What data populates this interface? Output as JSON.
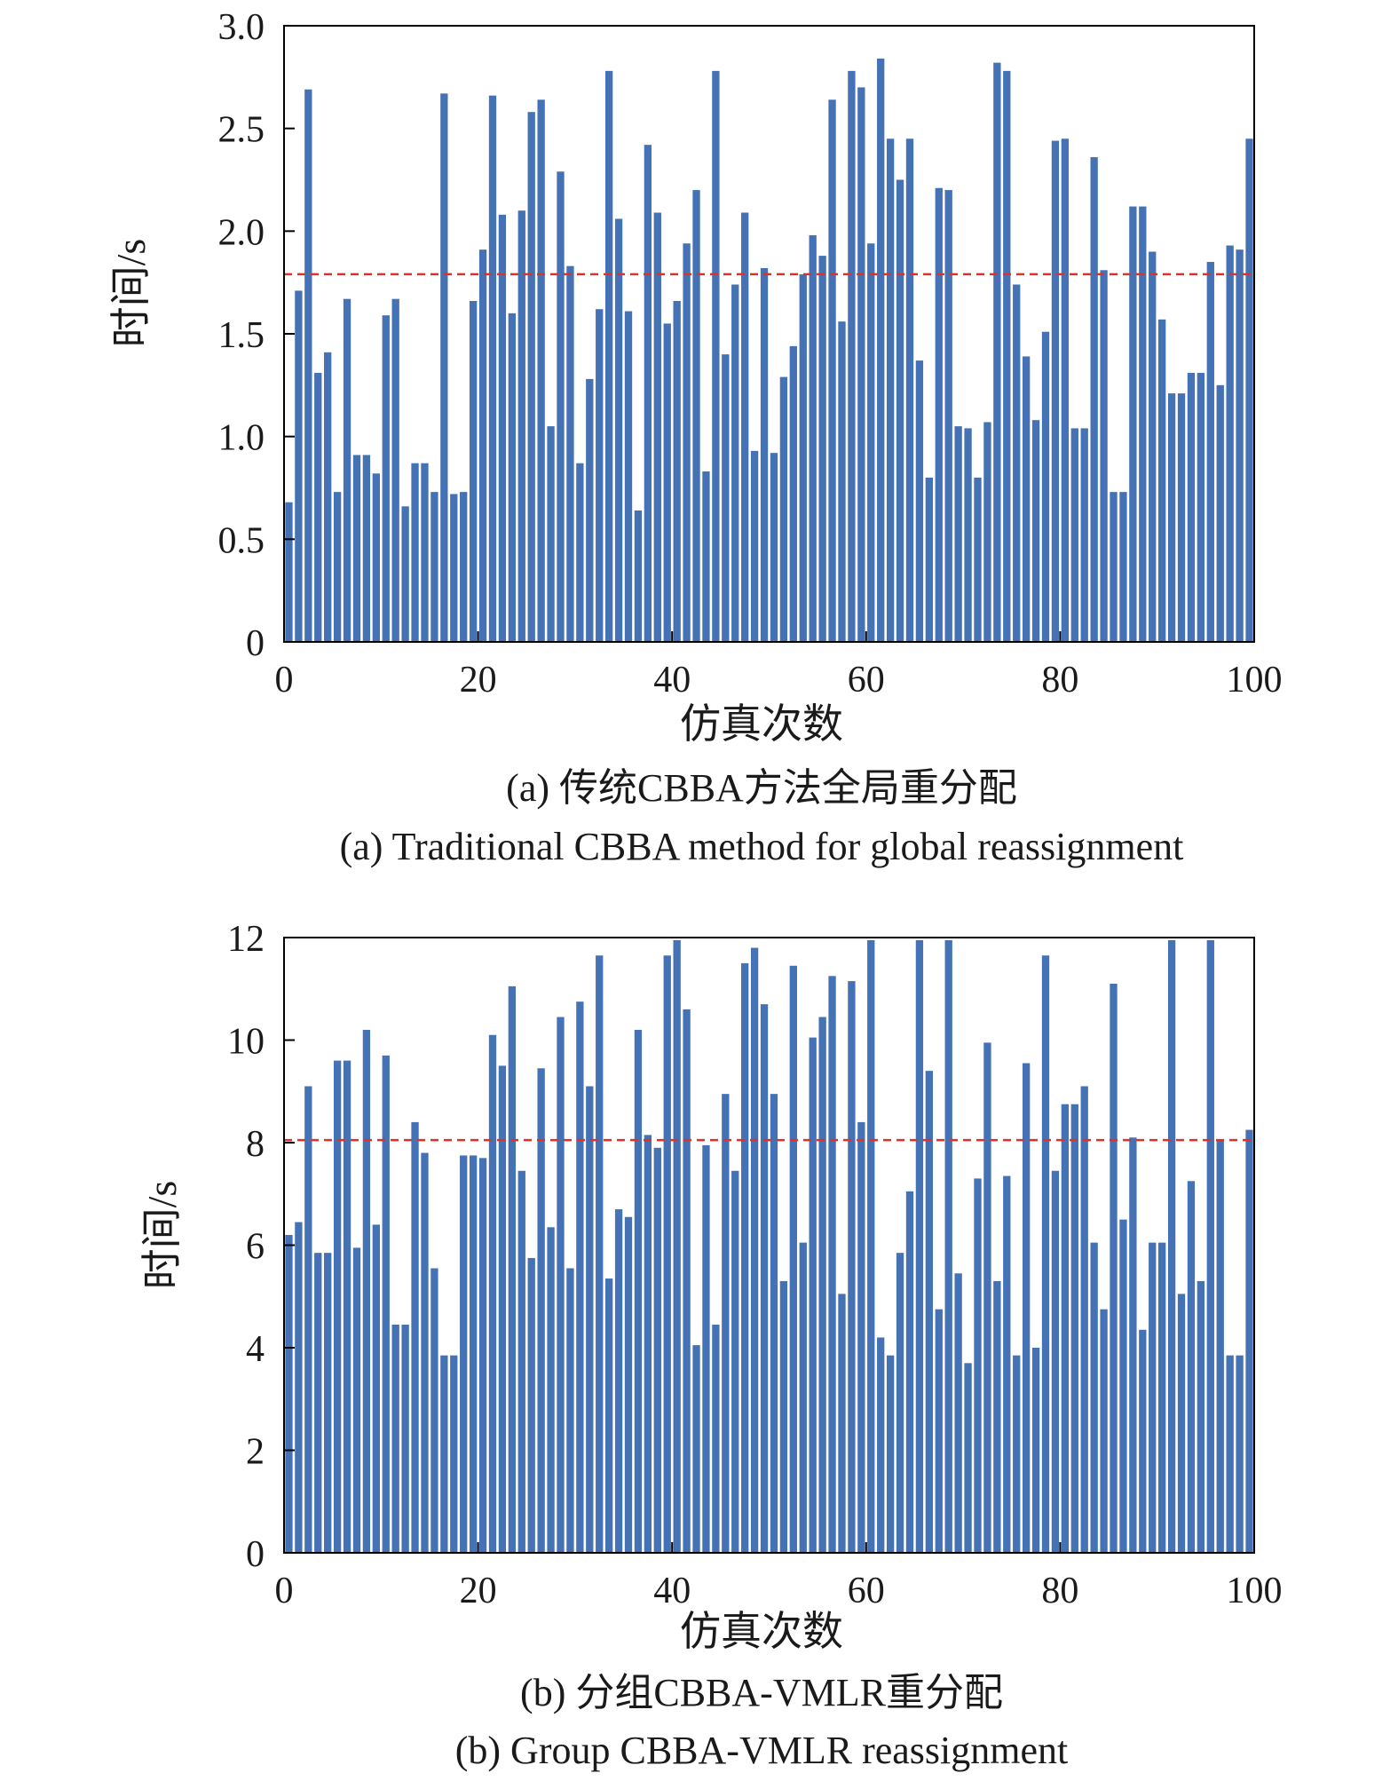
{
  "chart_data": [
    {
      "type": "bar",
      "x": [
        1,
        2,
        3,
        4,
        5,
        6,
        7,
        8,
        9,
        10,
        11,
        12,
        13,
        14,
        15,
        16,
        17,
        18,
        19,
        20,
        21,
        22,
        23,
        24,
        25,
        26,
        27,
        28,
        29,
        30,
        31,
        32,
        33,
        34,
        35,
        36,
        37,
        38,
        39,
        40,
        41,
        42,
        43,
        44,
        45,
        46,
        47,
        48,
        49,
        50,
        51,
        52,
        53,
        54,
        55,
        56,
        57,
        58,
        59,
        60,
        61,
        62,
        63,
        64,
        65,
        66,
        67,
        68,
        69,
        70,
        71,
        72,
        73,
        74,
        75,
        76,
        77,
        78,
        79,
        80,
        81,
        82,
        83,
        84,
        85,
        86,
        87,
        88,
        89,
        90,
        91,
        92,
        93,
        94,
        95,
        96,
        97,
        98,
        99,
        100
      ],
      "values": [
        0.68,
        1.71,
        2.69,
        1.31,
        1.41,
        0.73,
        1.67,
        0.91,
        0.91,
        0.82,
        1.59,
        1.67,
        0.66,
        0.87,
        0.87,
        0.73,
        2.67,
        0.72,
        0.73,
        1.66,
        1.91,
        2.66,
        2.08,
        1.6,
        2.1,
        2.58,
        2.64,
        1.05,
        2.29,
        1.83,
        0.87,
        1.28,
        1.62,
        2.78,
        2.06,
        1.61,
        0.64,
        2.42,
        2.09,
        1.55,
        1.66,
        1.94,
        2.2,
        0.83,
        2.78,
        1.4,
        1.74,
        2.09,
        0.93,
        1.82,
        0.92,
        1.29,
        1.44,
        1.79,
        1.98,
        1.88,
        2.64,
        1.56,
        2.78,
        2.7,
        1.94,
        2.84,
        2.45,
        2.25,
        2.45,
        1.37,
        0.8,
        2.21,
        2.2,
        1.05,
        1.04,
        0.8,
        1.07,
        2.82,
        2.78,
        1.74,
        1.39,
        1.08,
        1.51,
        2.44,
        2.45,
        1.04,
        1.04,
        2.36,
        1.81,
        0.73,
        0.73,
        2.12,
        2.12,
        1.9,
        1.57,
        1.21,
        1.21,
        1.31,
        1.31,
        1.85,
        1.25,
        1.93,
        1.91,
        2.45
      ],
      "reference_line": 1.79,
      "ylim": [
        0,
        3.0
      ],
      "xlim": [
        0,
        100
      ],
      "ytick_labels": [
        "0",
        "0.5",
        "1.0",
        "1.5",
        "2.0",
        "2.5",
        "3.0"
      ],
      "xtick_labels": [
        "0",
        "20",
        "40",
        "60",
        "80",
        "100"
      ],
      "xlabel": "仿真次数",
      "ylabel": "时间/s",
      "caption_cn": "(a) 传统CBBA方法全局重分配",
      "caption_en": "(a) Traditional CBBA method for global reassignment",
      "bar_color": "#4472b4",
      "line_color": "#e0302a"
    },
    {
      "type": "bar",
      "x": [
        1,
        2,
        3,
        4,
        5,
        6,
        7,
        8,
        9,
        10,
        11,
        12,
        13,
        14,
        15,
        16,
        17,
        18,
        19,
        20,
        21,
        22,
        23,
        24,
        25,
        26,
        27,
        28,
        29,
        30,
        31,
        32,
        33,
        34,
        35,
        36,
        37,
        38,
        39,
        40,
        41,
        42,
        43,
        44,
        45,
        46,
        47,
        48,
        49,
        50,
        51,
        52,
        53,
        54,
        55,
        56,
        57,
        58,
        59,
        60,
        61,
        62,
        63,
        64,
        65,
        66,
        67,
        68,
        69,
        70,
        71,
        72,
        73,
        74,
        75,
        76,
        77,
        78,
        79,
        80,
        81,
        82,
        83,
        84,
        85,
        86,
        87,
        88,
        89,
        90,
        91,
        92,
        93,
        94,
        95,
        96,
        97,
        98,
        99,
        100
      ],
      "values": [
        6.2,
        6.45,
        9.1,
        5.85,
        5.85,
        9.6,
        9.6,
        5.95,
        10.2,
        6.4,
        9.7,
        4.45,
        4.45,
        8.4,
        7.8,
        5.55,
        3.85,
        3.85,
        7.75,
        7.75,
        7.7,
        10.1,
        9.5,
        11.05,
        7.45,
        5.75,
        9.45,
        6.35,
        10.45,
        5.55,
        10.75,
        9.1,
        11.65,
        5.35,
        6.7,
        6.55,
        10.2,
        8.15,
        7.9,
        11.65,
        11.95,
        10.6,
        4.05,
        7.95,
        4.45,
        8.95,
        7.45,
        11.5,
        11.8,
        10.7,
        8.95,
        5.3,
        11.45,
        6.05,
        10.05,
        10.45,
        11.25,
        5.05,
        11.15,
        8.4,
        11.95,
        4.2,
        3.85,
        5.85,
        7.05,
        11.95,
        9.4,
        4.75,
        11.95,
        5.45,
        3.7,
        7.3,
        9.95,
        5.3,
        7.35,
        3.85,
        9.55,
        4.0,
        11.65,
        7.45,
        8.75,
        8.75,
        9.1,
        6.05,
        4.75,
        11.1,
        6.5,
        8.1,
        4.35,
        6.05,
        6.05,
        11.95,
        5.05,
        7.25,
        5.3,
        11.95,
        8.05,
        3.85,
        3.85,
        8.25
      ],
      "reference_line": 8.05,
      "ylim": [
        0,
        12
      ],
      "xlim": [
        0,
        100
      ],
      "ytick_labels": [
        "0",
        "2",
        "4",
        "6",
        "8",
        "10",
        "12"
      ],
      "xtick_labels": [
        "0",
        "20",
        "40",
        "60",
        "80",
        "100"
      ],
      "xlabel": "仿真次数",
      "ylabel": "时间/s",
      "caption_cn": "(b) 分组CBBA-VMLR重分配",
      "caption_en": "(b) Group CBBA-VMLR reassignment",
      "bar_color": "#4472b4",
      "line_color": "#e0302a"
    }
  ]
}
